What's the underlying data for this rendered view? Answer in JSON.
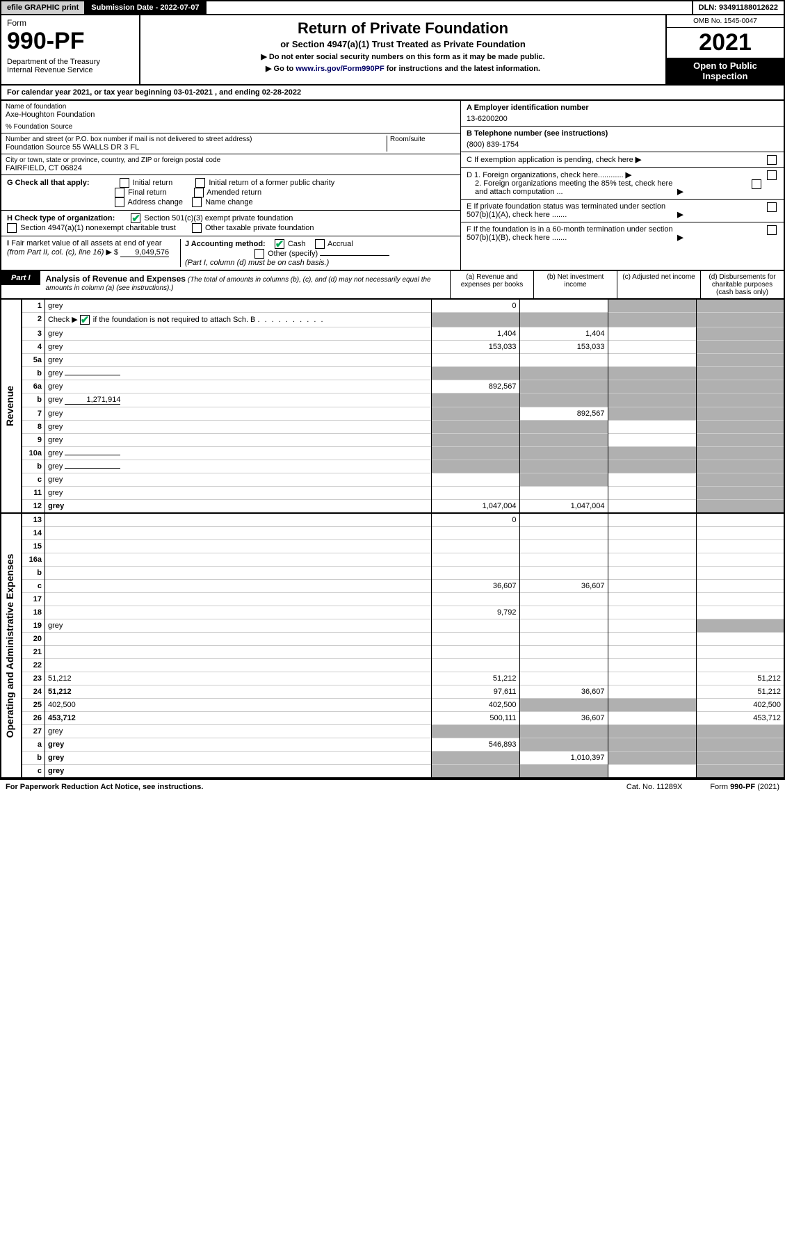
{
  "topbar": {
    "efile": "efile GRAPHIC print",
    "sub_label": "Submission Date - 2022-07-07",
    "dln": "DLN: 93491188012622"
  },
  "header": {
    "form_word": "Form",
    "form_num": "990-PF",
    "dept": "Department of the Treasury\nInternal Revenue Service",
    "title": "Return of Private Foundation",
    "subtitle": "or Section 4947(a)(1) Trust Treated as Private Foundation",
    "note1": "▶ Do not enter social security numbers on this form as it may be made public.",
    "note2_pre": "▶ Go to ",
    "note2_link": "www.irs.gov/Form990PF",
    "note2_post": " for instructions and the latest information.",
    "omb": "OMB No. 1545-0047",
    "year": "2021",
    "open": "Open to Public Inspection"
  },
  "calyear": "For calendar year 2021, or tax year beginning 03-01-2021            , and ending 02-28-2022",
  "info": {
    "name_label": "Name of foundation",
    "name": "Axe-Houghton Foundation",
    "care": "% Foundation Source",
    "addr_label": "Number and street (or P.O. box number if mail is not delivered to street address)",
    "addr": "Foundation Source 55 WALLS DR 3 FL",
    "room_label": "Room/suite",
    "city_label": "City or town, state or province, country, and ZIP or foreign postal code",
    "city": "FAIRFIELD, CT  06824",
    "a_label": "A Employer identification number",
    "a_val": "13-6200200",
    "b_label": "B Telephone number (see instructions)",
    "b_val": "(800) 839-1754",
    "c_label": "C If exemption application is pending, check here",
    "d1": "D 1. Foreign organizations, check here............",
    "d2": "2. Foreign organizations meeting the 85% test, check here and attach computation ...",
    "e": "E If private foundation status was terminated under section 507(b)(1)(A), check here .......",
    "f": "F If the foundation is in a 60-month termination under section 507(b)(1)(B), check here .......",
    "g_label": "G Check all that apply:",
    "g_opts": [
      "Initial return",
      "Initial return of a former public charity",
      "Final return",
      "Amended return",
      "Address change",
      "Name change"
    ],
    "h_label": "H Check type of organization:",
    "h_opts": [
      "Section 501(c)(3) exempt private foundation",
      "Section 4947(a)(1) nonexempt charitable trust",
      "Other taxable private foundation"
    ],
    "i_label": "I Fair market value of all assets at end of year (from Part II, col. (c), line 16) ▶ $",
    "i_val": "9,049,576",
    "j_label": "J Accounting method:",
    "j_opts": [
      "Cash",
      "Accrual",
      "Other (specify)"
    ],
    "j_note": "(Part I, column (d) must be on cash basis.)"
  },
  "part1": {
    "label": "Part I",
    "title": "Analysis of Revenue and Expenses",
    "title_note": "(The total of amounts in columns (b), (c), and (d) may not necessarily equal the amounts in column (a) (see instructions).)",
    "cols": {
      "a": "(a) Revenue and expenses per books",
      "b": "(b) Net investment income",
      "c": "(c) Adjusted net income",
      "d": "(d) Disbursements for charitable purposes (cash basis only)"
    }
  },
  "side_labels": {
    "rev": "Revenue",
    "exp": "Operating and Administrative Expenses"
  },
  "rows": [
    {
      "n": "1",
      "d": "grey",
      "a": "0",
      "b": "",
      "c": "grey"
    },
    {
      "n": "2",
      "d": "grey",
      "a": "grey",
      "b": "grey",
      "c": "grey",
      "checked": true
    },
    {
      "n": "3",
      "d": "grey",
      "a": "1,404",
      "b": "1,404",
      "c": ""
    },
    {
      "n": "4",
      "d": "grey",
      "a": "153,033",
      "b": "153,033",
      "c": ""
    },
    {
      "n": "5a",
      "d": "grey",
      "a": "",
      "b": "",
      "c": ""
    },
    {
      "n": "b",
      "d": "grey",
      "a": "grey",
      "b": "grey",
      "c": "grey",
      "inline": ""
    },
    {
      "n": "6a",
      "d": "grey",
      "a": "892,567",
      "b": "grey",
      "c": "grey"
    },
    {
      "n": "b",
      "d": "grey",
      "a": "grey",
      "b": "grey",
      "c": "grey",
      "inline": "1,271,914"
    },
    {
      "n": "7",
      "d": "grey",
      "a": "grey",
      "b": "892,567",
      "c": "grey"
    },
    {
      "n": "8",
      "d": "grey",
      "a": "grey",
      "b": "grey",
      "c": ""
    },
    {
      "n": "9",
      "d": "grey",
      "a": "grey",
      "b": "grey",
      "c": ""
    },
    {
      "n": "10a",
      "d": "grey",
      "a": "grey",
      "b": "grey",
      "c": "grey",
      "inline": ""
    },
    {
      "n": "b",
      "d": "grey",
      "a": "grey",
      "b": "grey",
      "c": "grey",
      "inline": ""
    },
    {
      "n": "c",
      "d": "grey",
      "a": "",
      "b": "grey",
      "c": ""
    },
    {
      "n": "11",
      "d": "grey",
      "a": "",
      "b": "",
      "c": ""
    },
    {
      "n": "12",
      "d": "grey",
      "a": "1,047,004",
      "b": "1,047,004",
      "c": "",
      "bold": true
    }
  ],
  "exp_rows": [
    {
      "n": "13",
      "d": "",
      "a": "0",
      "b": "",
      "c": ""
    },
    {
      "n": "14",
      "d": "",
      "a": "",
      "b": "",
      "c": ""
    },
    {
      "n": "15",
      "d": "",
      "a": "",
      "b": "",
      "c": ""
    },
    {
      "n": "16a",
      "d": "",
      "a": "",
      "b": "",
      "c": ""
    },
    {
      "n": "b",
      "d": "",
      "a": "",
      "b": "",
      "c": ""
    },
    {
      "n": "c",
      "d": "",
      "a": "36,607",
      "b": "36,607",
      "c": ""
    },
    {
      "n": "17",
      "d": "",
      "a": "",
      "b": "",
      "c": ""
    },
    {
      "n": "18",
      "d": "",
      "a": "9,792",
      "b": "",
      "c": ""
    },
    {
      "n": "19",
      "d": "grey",
      "a": "",
      "b": "",
      "c": ""
    },
    {
      "n": "20",
      "d": "",
      "a": "",
      "b": "",
      "c": ""
    },
    {
      "n": "21",
      "d": "",
      "a": "",
      "b": "",
      "c": ""
    },
    {
      "n": "22",
      "d": "",
      "a": "",
      "b": "",
      "c": ""
    },
    {
      "n": "23",
      "d": "51,212",
      "a": "51,212",
      "b": "",
      "c": ""
    },
    {
      "n": "24",
      "d": "51,212",
      "a": "97,611",
      "b": "36,607",
      "c": "",
      "bold": true
    },
    {
      "n": "25",
      "d": "402,500",
      "a": "402,500",
      "b": "grey",
      "c": "grey"
    },
    {
      "n": "26",
      "d": "453,712",
      "a": "500,111",
      "b": "36,607",
      "c": "",
      "bold": true
    },
    {
      "n": "27",
      "d": "grey",
      "a": "grey",
      "b": "grey",
      "c": "grey"
    },
    {
      "n": "a",
      "d": "grey",
      "a": "546,893",
      "b": "grey",
      "c": "grey",
      "bold": true
    },
    {
      "n": "b",
      "d": "grey",
      "a": "grey",
      "b": "1,010,397",
      "c": "grey",
      "bold": true
    },
    {
      "n": "c",
      "d": "grey",
      "a": "grey",
      "b": "grey",
      "c": "",
      "bold": true
    }
  ],
  "footer": {
    "pra": "For Paperwork Reduction Act Notice, see instructions.",
    "cat": "Cat. No. 11289X",
    "form": "Form 990-PF (2021)"
  }
}
